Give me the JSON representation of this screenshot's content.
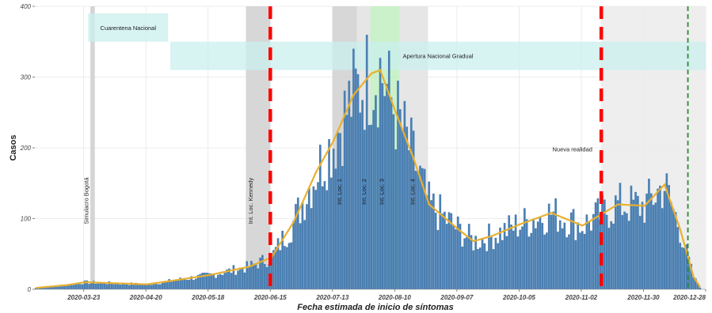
{
  "chart_data": {
    "type": "bar",
    "title": "",
    "xlabel": "Fecha estimada de inicio de síntomas",
    "ylabel": "Casos",
    "ylim": [
      0,
      400
    ],
    "yticks": [
      0,
      100,
      200,
      300,
      400
    ],
    "xlim": [
      "2020-03-01",
      "2020-12-28"
    ],
    "xticks": [
      "2020-03-23",
      "2020-04-20",
      "2020-05-18",
      "2020-06-15",
      "2020-07-13",
      "2020-08-10",
      "2020-09-07",
      "2020-10-05",
      "2020-11-02",
      "2020-11-30",
      "2020-12-28"
    ],
    "xtick_labels": [
      "2020-03-23",
      "2020-04-20",
      "2020-05-18",
      "2020-06-15",
      "2020-07-13",
      "2020-08-10",
      "2020-09-07",
      "2020-10-05",
      "2020-11-02",
      "2020-11-30",
      "2020-12-28"
    ],
    "grid": true,
    "bar_color": "#4a7fb2",
    "smooth_color": "#e8b030",
    "series_keypoints": [
      {
        "date": "2020-03-01",
        "value": 2
      },
      {
        "date": "2020-03-15",
        "value": 6
      },
      {
        "date": "2020-03-23",
        "value": 10
      },
      {
        "date": "2020-04-10",
        "value": 8
      },
      {
        "date": "2020-04-20",
        "value": 7
      },
      {
        "date": "2020-05-01",
        "value": 12
      },
      {
        "date": "2020-05-18",
        "value": 20
      },
      {
        "date": "2020-06-05",
        "value": 32
      },
      {
        "date": "2020-06-15",
        "value": 45
      },
      {
        "date": "2020-06-25",
        "value": 95
      },
      {
        "date": "2020-07-05",
        "value": 165
      },
      {
        "date": "2020-07-13",
        "value": 210
      },
      {
        "date": "2020-07-22",
        "value": 275
      },
      {
        "date": "2020-07-30",
        "value": 305
      },
      {
        "date": "2020-08-03",
        "value": 310
      },
      {
        "date": "2020-08-10",
        "value": 250
      },
      {
        "date": "2020-08-18",
        "value": 185
      },
      {
        "date": "2020-08-25",
        "value": 120
      },
      {
        "date": "2020-09-07",
        "value": 85
      },
      {
        "date": "2020-09-14",
        "value": 68
      },
      {
        "date": "2020-09-22",
        "value": 75
      },
      {
        "date": "2020-10-05",
        "value": 92
      },
      {
        "date": "2020-10-19",
        "value": 108
      },
      {
        "date": "2020-11-02",
        "value": 90
      },
      {
        "date": "2020-11-10",
        "value": 105
      },
      {
        "date": "2020-11-18",
        "value": 120
      },
      {
        "date": "2020-11-30",
        "value": 118
      },
      {
        "date": "2020-12-09",
        "value": 148
      },
      {
        "date": "2020-12-16",
        "value": 85
      },
      {
        "date": "2020-12-22",
        "value": 18
      },
      {
        "date": "2020-12-25",
        "value": 3
      }
    ],
    "shaded_periods": [
      {
        "start": "2020-03-26",
        "end": "2020-03-28",
        "color": "#d0d0d0"
      },
      {
        "start": "2020-06-04",
        "end": "2020-06-15",
        "color": "#d3d3d3"
      },
      {
        "start": "2020-07-13",
        "end": "2020-07-24",
        "color": "#d3d3d3"
      },
      {
        "start": "2020-07-24",
        "end": "2020-07-30",
        "color": "#e3e3e3"
      },
      {
        "start": "2020-07-30",
        "end": "2020-08-12",
        "color": "#c4efc4"
      },
      {
        "start": "2020-08-12",
        "end": "2020-08-25",
        "color": "#e3e3e3"
      },
      {
        "start": "2020-11-11",
        "end": "2020-12-28",
        "color": "#ececec"
      }
    ],
    "policy_bands": [
      {
        "label": "Cuarentena Nacional",
        "start": "2020-03-25",
        "end": "2020-04-30",
        "y_top": 390,
        "y_bottom": 350
      },
      {
        "label": "Apertura Nacional Gradual",
        "start": "2020-05-01",
        "end": "2020-12-28",
        "y_top": 350,
        "y_bottom": 310
      }
    ],
    "vertical_lines": [
      {
        "date": "2020-06-15",
        "color": "#ff0000",
        "style": "dashed-thick"
      },
      {
        "date": "2020-11-11",
        "color": "#ff0000",
        "style": "dashed-thick"
      },
      {
        "date": "2020-12-20",
        "color": "#2e8b2e",
        "style": "dashed-thin"
      }
    ],
    "annotations": [
      {
        "text": "Simulacro Bogotá",
        "date": "2020-03-25",
        "y": 125,
        "rotation": -90
      },
      {
        "text": "Int. Loc. Kennedy",
        "date": "2020-06-07",
        "y": 125,
        "rotation": -90
      },
      {
        "text": "Int. Loc. 1",
        "date": "2020-07-17",
        "y": 138,
        "rotation": -90
      },
      {
        "text": "Int. Loc. 2",
        "date": "2020-07-28",
        "y": 138,
        "rotation": -90
      },
      {
        "text": "Int. Loc. 3",
        "date": "2020-08-05",
        "y": 138,
        "rotation": -90
      },
      {
        "text": "Int. Loc. 4",
        "date": "2020-08-19",
        "y": 138,
        "rotation": -90
      },
      {
        "text": "Nueva realidad",
        "date": "2020-10-29",
        "y": 195,
        "rotation": 0
      }
    ]
  }
}
